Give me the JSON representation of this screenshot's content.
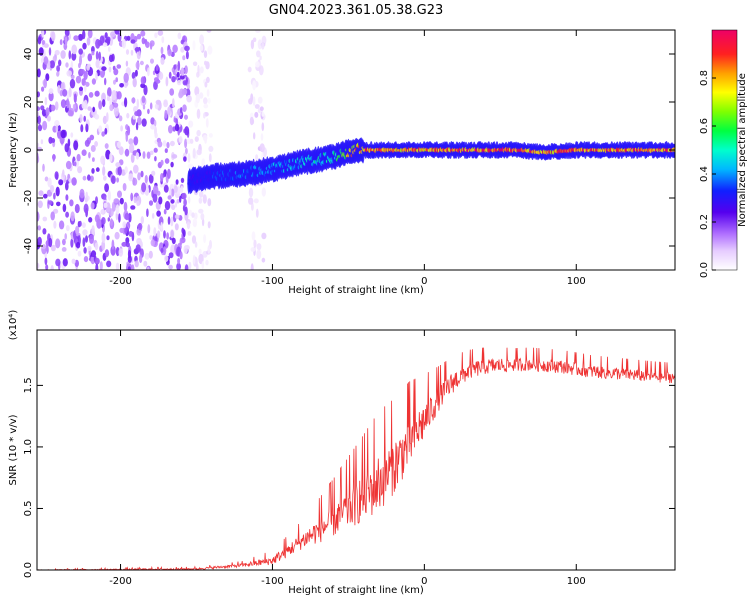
{
  "figure_title": "GN04.2023.361.05.38.G23",
  "chart_data": [
    {
      "type": "heatmap",
      "title": "GN04.2023.361.05.38.G23",
      "xlabel": "Height of straight line (km)",
      "ylabel": "Frequency (Hz)",
      "xlim": [
        -255,
        165
      ],
      "ylim": [
        -50,
        50
      ],
      "x_ticks": [
        -200,
        -100,
        0,
        100
      ],
      "y_ticks": [
        -40,
        -20,
        0,
        20,
        40
      ],
      "x_tick_labels": [
        "-200",
        "-100",
        "0",
        "100"
      ],
      "y_tick_labels": [
        "-40",
        "-20",
        "0",
        "20",
        "40"
      ],
      "colorbar": {
        "label": "Normalized spectral amplitude",
        "range": [
          0,
          1
        ],
        "ticks": [
          0.0,
          0.2,
          0.4,
          0.6,
          0.8
        ],
        "tick_labels": [
          "0.0",
          "0.2",
          "0.4",
          "0.6",
          "0.8"
        ]
      },
      "ridge": {
        "x": [
          -155,
          -140,
          -120,
          -100,
          -80,
          -60,
          -45,
          -35,
          -20,
          0,
          20,
          40,
          60,
          80,
          100,
          120,
          140,
          160,
          165
        ],
        "y": [
          -13,
          -11,
          -10,
          -8,
          -5,
          -3,
          0,
          0,
          0,
          0,
          0,
          0,
          0,
          -1,
          0,
          0,
          0,
          0,
          0
        ],
        "peak_amplitude": [
          0.3,
          0.35,
          0.4,
          0.45,
          0.5,
          0.55,
          0.9,
          0.95,
          0.9,
          0.9,
          0.95,
          0.95,
          0.95,
          0.9,
          0.95,
          0.95,
          0.95,
          0.95,
          0.95
        ]
      },
      "noise_regions": [
        {
          "x_range": [
            -255,
            -155
          ],
          "amplitude": 0.12
        },
        {
          "x_range": [
            -155,
            -140
          ],
          "amplitude": 0.04
        },
        {
          "x_range": [
            -115,
            -105
          ],
          "amplitude": 0.05
        }
      ]
    },
    {
      "type": "line",
      "title": "",
      "xlabel": "Height of straight line (km)",
      "ylabel": "SNR (10 * v/v)",
      "scale_note": "(x10⁴)",
      "xlim": [
        -255,
        165
      ],
      "ylim": [
        0,
        1.95
      ],
      "x_ticks": [
        -200,
        -100,
        0,
        100
      ],
      "y_ticks": [
        0.0,
        0.5,
        1.0,
        1.5
      ],
      "x_tick_labels": [
        "-200",
        "-100",
        "0",
        "100"
      ],
      "y_tick_labels": [
        "0.0",
        "0.5",
        "1.0",
        "1.5"
      ],
      "series": [
        {
          "color": "#ee3333",
          "envelope": {
            "x": [
              -255,
              -150,
              -140,
              -120,
              -110,
              -100,
              -90,
              -80,
              -70,
              -60,
              -50,
              -40,
              -30,
              -20,
              -10,
              0,
              10,
              20,
              30,
              40,
              50,
              70,
              90,
              110,
              130,
              150,
              165
            ],
            "y": [
              0.0,
              0.01,
              0.02,
              0.04,
              0.06,
              0.08,
              0.16,
              0.25,
              0.33,
              0.42,
              0.52,
              0.62,
              0.73,
              0.87,
              1.05,
              1.23,
              1.42,
              1.55,
              1.63,
              1.66,
              1.67,
              1.68,
              1.66,
              1.62,
              1.6,
              1.58,
              1.57
            ]
          },
          "noise_amplitude": {
            "x": [
              -255,
              -150,
              -120,
              -100,
              -80,
              -50,
              -30,
              -10,
              10,
              30,
              60,
              100,
              165
            ],
            "y": [
              0.005,
              0.01,
              0.02,
              0.05,
              0.1,
              0.25,
              0.35,
              0.3,
              0.15,
              0.1,
              0.08,
              0.08,
              0.07
            ]
          }
        }
      ]
    }
  ]
}
